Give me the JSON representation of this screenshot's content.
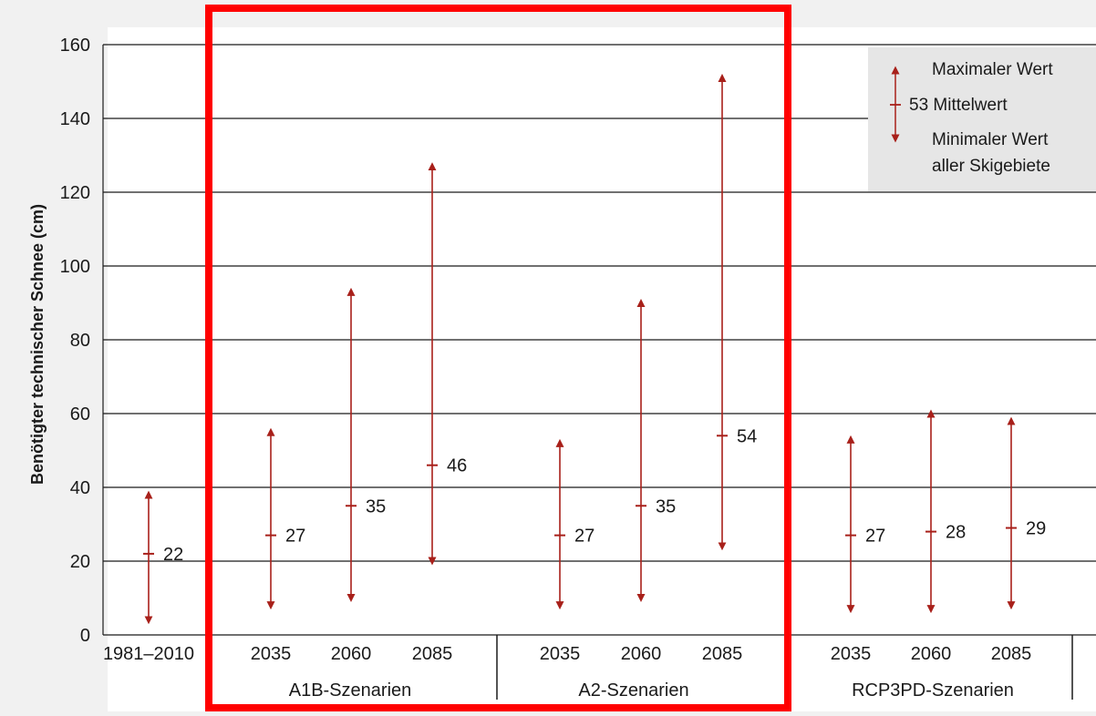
{
  "chart_data": {
    "type": "range",
    "ylabel": "Benötigter technischer Schnee (cm)",
    "ylim": [
      0,
      160
    ],
    "yticks": [
      "0",
      "20",
      "40",
      "60",
      "80",
      "100",
      "120",
      "140",
      "160"
    ],
    "grid": true,
    "points": [
      {
        "label": "1981–2010",
        "min": 4,
        "max": 38,
        "mean": 22,
        "mean_label": "22"
      },
      {
        "label": "2035",
        "group": "A1B-Szenarien",
        "min": 8,
        "max": 55,
        "mean": 27,
        "mean_label": "27"
      },
      {
        "label": "2060",
        "group": "A1B-Szenarien",
        "min": 10,
        "max": 93,
        "mean": 35,
        "mean_label": "35"
      },
      {
        "label": "2085",
        "group": "A1B-Szenarien",
        "min": 20,
        "max": 127,
        "mean": 46,
        "mean_label": "46"
      },
      {
        "label": "2035",
        "group": "A2-Szenarien",
        "min": 8,
        "max": 52,
        "mean": 27,
        "mean_label": "27"
      },
      {
        "label": "2060",
        "group": "A2-Szenarien",
        "min": 10,
        "max": 90,
        "mean": 35,
        "mean_label": "35"
      },
      {
        "label": "2085",
        "group": "A2-Szenarien",
        "min": 24,
        "max": 151,
        "mean": 54,
        "mean_label": "54"
      },
      {
        "label": "2035",
        "group": "RCP3PD-Szenarien",
        "min": 7,
        "max": 53,
        "mean": 27,
        "mean_label": "27"
      },
      {
        "label": "2060",
        "group": "RCP3PD-Szenarien",
        "min": 7,
        "max": 60,
        "mean": 28,
        "mean_label": "28"
      },
      {
        "label": "2085",
        "group": "RCP3PD-Szenarien",
        "min": 8,
        "max": 58,
        "mean": 29,
        "mean_label": "29"
      }
    ],
    "groups": [
      "A1B-Szenarien",
      "A2-Szenarien",
      "RCP3PD-Szenarien"
    ],
    "legend": {
      "position": "top-right",
      "max_label": "Maximaler Wert",
      "mean_label": "53 Mittelwert",
      "min_label_line1": "Minimaler Wert",
      "min_label_line2": "aller Skigebiete"
    },
    "highlight": {
      "groups": [
        "A1B-Szenarien",
        "A2-Szenarien"
      ],
      "color": "#ff0000"
    },
    "colors": {
      "series": "#a8201a",
      "highlight": "#ff0000",
      "grid": "#1a1a1a",
      "background": "#f1f1f1",
      "legend_bg": "#e6e6e6"
    }
  }
}
